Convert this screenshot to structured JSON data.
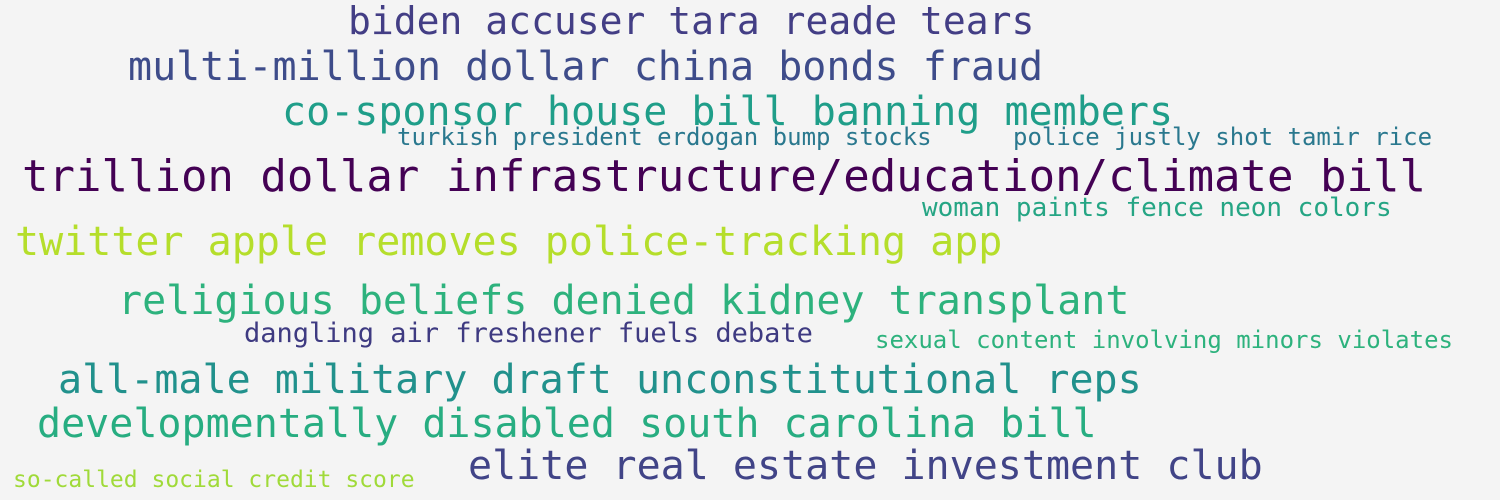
{
  "word_cloud": {
    "words": [
      {
        "text": "biden accuser tara reade tears",
        "color": "#433e85"
      },
      {
        "text": "multi-million dollar china bonds fraud",
        "color": "#3e4c8a"
      },
      {
        "text": "co-sponsor house bill banning members",
        "color": "#1f9e89"
      },
      {
        "text": "turkish president erdogan bump stocks",
        "color": "#2a788e"
      },
      {
        "text": "police justly shot tamir rice",
        "color": "#2a788e"
      },
      {
        "text": "trillion dollar infrastructure/education/climate bill",
        "color": "#440154"
      },
      {
        "text": "woman paints fence neon colors",
        "color": "#25a584"
      },
      {
        "text": "twitter apple removes police-tracking app",
        "color": "#b5de2b"
      },
      {
        "text": "religious beliefs denied kidney transplant",
        "color": "#2db27d"
      },
      {
        "text": "dangling air freshener fuels debate",
        "color": "#3e3a81"
      },
      {
        "text": "sexual content involving minors violates",
        "color": "#2db27d"
      },
      {
        "text": "all-male military draft unconstitutional reps",
        "color": "#21918c"
      },
      {
        "text": "developmentally disabled south carolina bill",
        "color": "#27ad81"
      },
      {
        "text": "elite real estate investment club",
        "color": "#414487"
      },
      {
        "text": "so-called social credit score",
        "color": "#a0da39"
      }
    ]
  }
}
